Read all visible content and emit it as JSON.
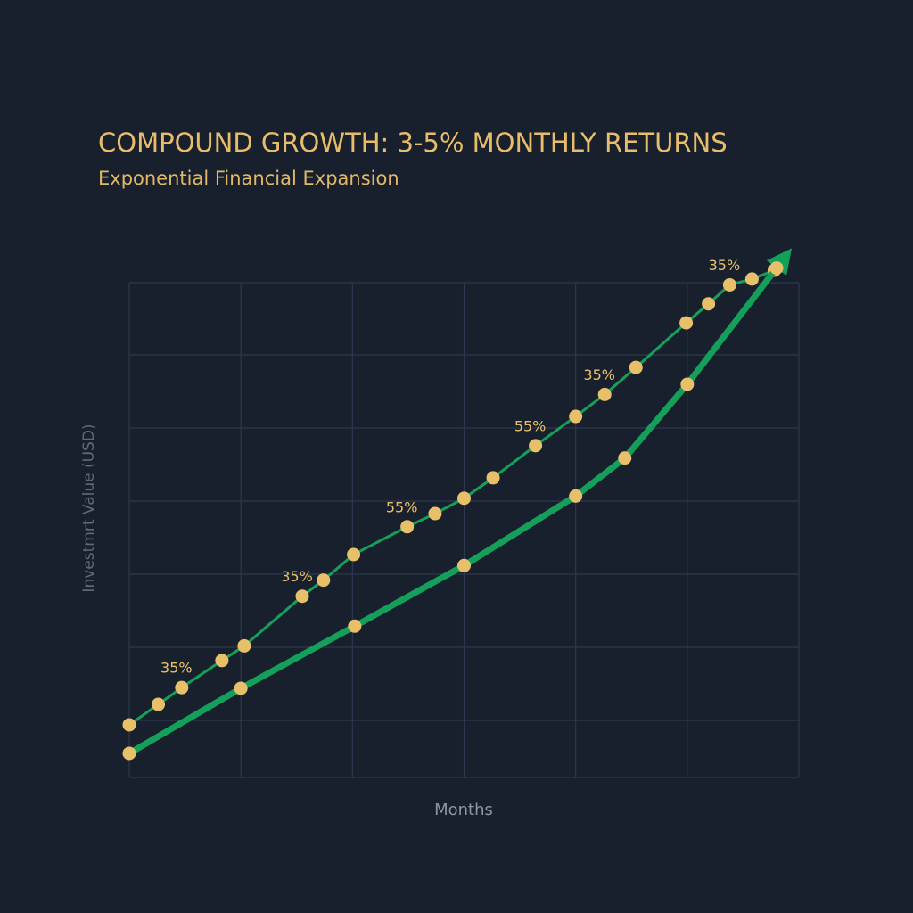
{
  "chart_data": {
    "type": "line",
    "title": "COMPOUND GROWTH: 3-5% MONTHLY RETURNS",
    "subtitle": "Exponential Financial Expansion",
    "xlabel": "Months",
    "ylabel": "Investmrt Value (USD)",
    "xlim": [
      0,
      6
    ],
    "ylim": [
      0,
      6.77
    ],
    "grid": true,
    "series": [
      {
        "color": "#14a05a",
        "marker_color": "#e8c06a",
        "width": 3,
        "x": [
          0,
          0.26,
          0.47,
          0.83,
          1.03,
          1.55,
          1.74,
          2.01,
          2.49,
          2.74,
          3.0,
          3.26,
          3.64,
          4.0,
          4.26,
          4.54,
          4.99,
          5.19,
          5.38,
          5.58,
          5.78
        ],
        "values": [
          0.72,
          1.0,
          1.23,
          1.6,
          1.8,
          2.48,
          2.7,
          3.05,
          3.43,
          3.61,
          3.82,
          4.1,
          4.54,
          4.94,
          5.24,
          5.61,
          6.22,
          6.48,
          6.74,
          6.82,
          6.94
        ]
      },
      {
        "color": "#14a05a",
        "marker_color": "#e8c06a",
        "width": 7,
        "arrow": true,
        "x": [
          0,
          1,
          2.02,
          3,
          4,
          4.44,
          5,
          5.8
        ],
        "values": [
          0.33,
          1.22,
          2.07,
          2.9,
          3.85,
          4.37,
          5.38,
          6.97
        ]
      }
    ],
    "annotations": [
      "35%",
      "35%",
      "55%",
      "55%",
      "35%",
      "35%"
    ]
  }
}
